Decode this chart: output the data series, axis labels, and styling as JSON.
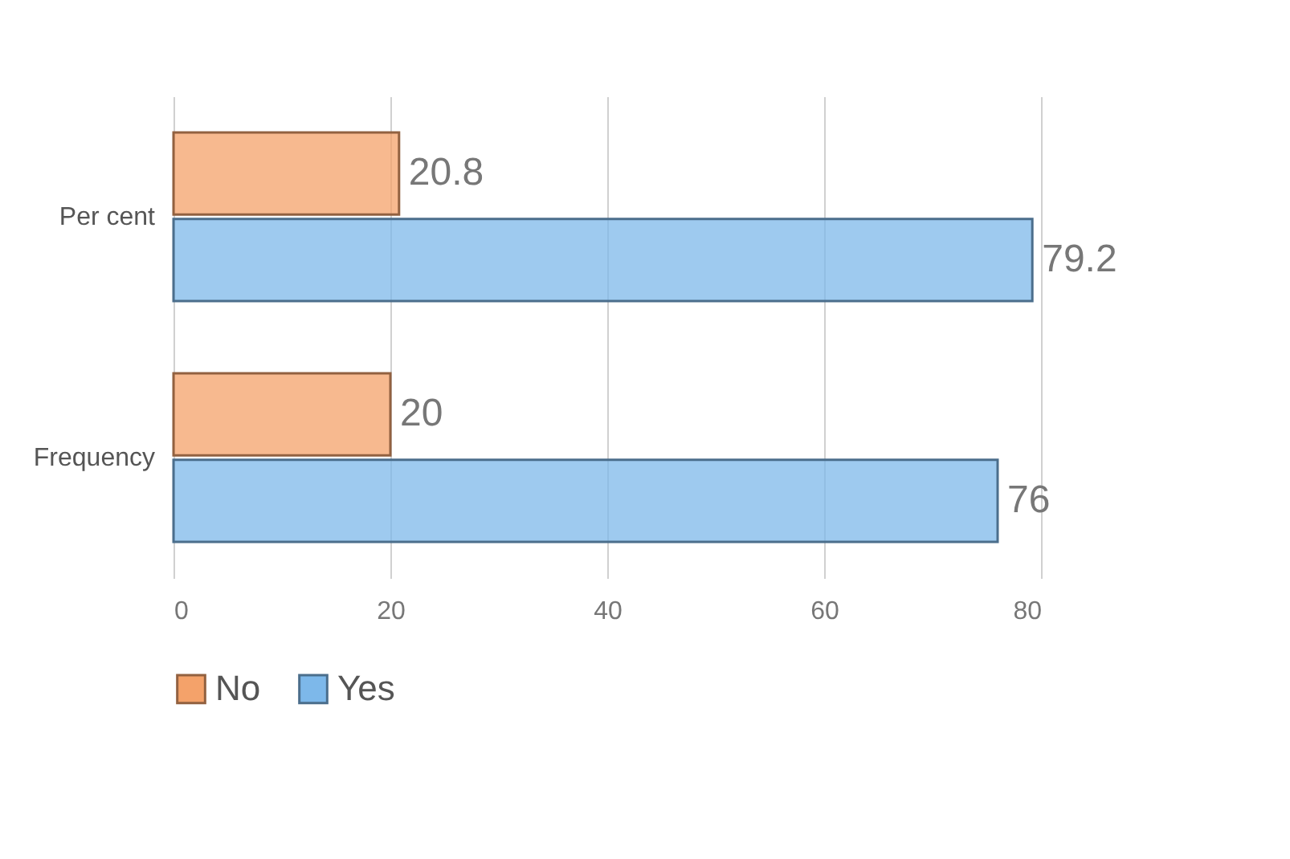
{
  "chart_data": {
    "type": "bar",
    "orientation": "horizontal",
    "categories": [
      "Per cent",
      "Frequency"
    ],
    "series": [
      {
        "name": "No",
        "color": "#f4a26a",
        "values": [
          20.8,
          20
        ]
      },
      {
        "name": "Yes",
        "color": "#7db8ea",
        "values": [
          79.2,
          76
        ]
      }
    ],
    "xlim": [
      0,
      80
    ],
    "xticks": [
      0,
      20,
      40,
      60,
      80
    ],
    "grid": "x",
    "legend": "bottom",
    "data_labels": true
  }
}
